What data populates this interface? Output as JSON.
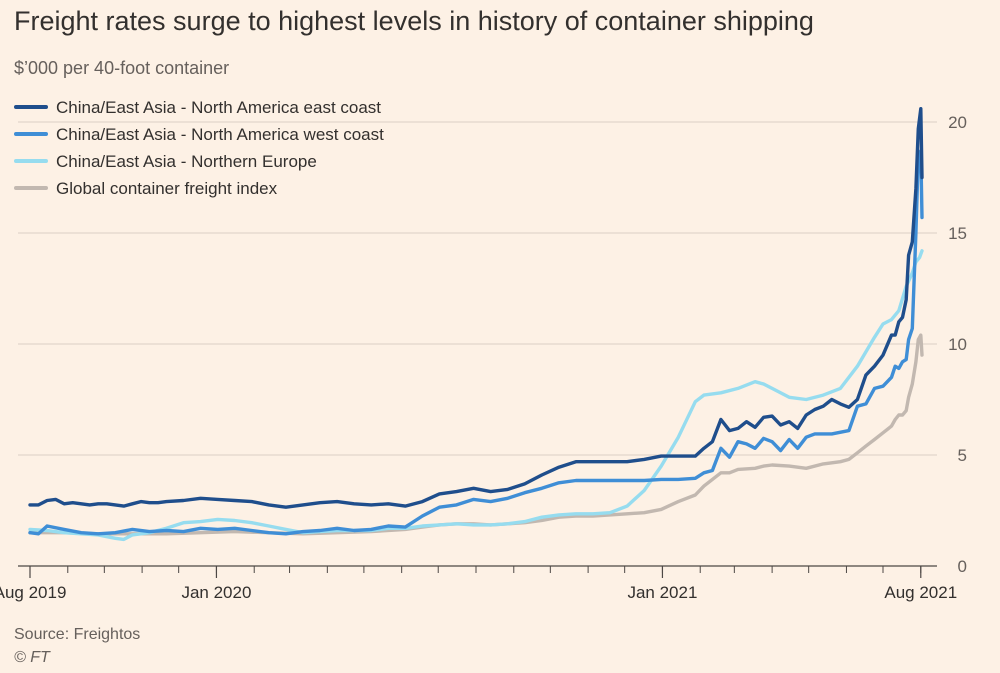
{
  "header": {
    "title": "Freight rates surge to highest levels in history of container shipping",
    "subtitle": "$’000 per 40-foot container"
  },
  "footer": {
    "source": "Source: Freightos",
    "credit": "© FT"
  },
  "colors": {
    "background": "#fdf1e5",
    "grid": "#e2d7cc",
    "axis": "#4d4845",
    "text": "#33302e",
    "muted": "#66605c"
  },
  "chart_data": {
    "type": "line",
    "title": "Freight rates surge to highest levels in history of container shipping",
    "ylabel": "$’000 per 40-foot container",
    "xlabel": "",
    "ylim": [
      0,
      21
    ],
    "yticks": [
      0,
      5,
      10,
      15,
      20
    ],
    "x_tick_labels": [
      "Aug 2019",
      "Jan 2020",
      "Jan 2021",
      "Aug 2021"
    ],
    "x_tick_dates": [
      "2019-08-01",
      "2020-01-01",
      "2021-01-01",
      "2021-08-01"
    ],
    "x_range": [
      "2019-08-01",
      "2021-08-02"
    ],
    "grid": true,
    "legend_position": "top-left",
    "series": [
      {
        "name": "China/East Asia - North America east coast",
        "color": "#1f4e8c",
        "points": [
          [
            "2019-08-01",
            2.75
          ],
          [
            "2019-08-08",
            2.75
          ],
          [
            "2019-08-15",
            2.95
          ],
          [
            "2019-08-22",
            3.0
          ],
          [
            "2019-08-29",
            2.8
          ],
          [
            "2019-09-05",
            2.85
          ],
          [
            "2019-09-12",
            2.8
          ],
          [
            "2019-09-19",
            2.75
          ],
          [
            "2019-09-26",
            2.8
          ],
          [
            "2019-10-03",
            2.8
          ],
          [
            "2019-10-10",
            2.75
          ],
          [
            "2019-10-17",
            2.7
          ],
          [
            "2019-10-24",
            2.8
          ],
          [
            "2019-10-31",
            2.9
          ],
          [
            "2019-11-07",
            2.85
          ],
          [
            "2019-11-14",
            2.85
          ],
          [
            "2019-11-21",
            2.9
          ],
          [
            "2019-12-05",
            2.95
          ],
          [
            "2019-12-19",
            3.05
          ],
          [
            "2020-01-02",
            3.0
          ],
          [
            "2020-01-16",
            2.95
          ],
          [
            "2020-01-30",
            2.9
          ],
          [
            "2020-02-13",
            2.75
          ],
          [
            "2020-02-27",
            2.65
          ],
          [
            "2020-03-12",
            2.75
          ],
          [
            "2020-03-26",
            2.85
          ],
          [
            "2020-04-09",
            2.9
          ],
          [
            "2020-04-23",
            2.8
          ],
          [
            "2020-05-07",
            2.75
          ],
          [
            "2020-05-21",
            2.8
          ],
          [
            "2020-06-04",
            2.7
          ],
          [
            "2020-06-18",
            2.9
          ],
          [
            "2020-07-02",
            3.25
          ],
          [
            "2020-07-16",
            3.35
          ],
          [
            "2020-07-30",
            3.5
          ],
          [
            "2020-08-13",
            3.35
          ],
          [
            "2020-08-27",
            3.45
          ],
          [
            "2020-09-10",
            3.7
          ],
          [
            "2020-09-24",
            4.1
          ],
          [
            "2020-10-08",
            4.45
          ],
          [
            "2020-10-22",
            4.7
          ],
          [
            "2020-11-05",
            4.7
          ],
          [
            "2020-11-19",
            4.7
          ],
          [
            "2020-12-03",
            4.7
          ],
          [
            "2020-12-17",
            4.8
          ],
          [
            "2020-12-31",
            4.95
          ],
          [
            "2021-01-14",
            4.95
          ],
          [
            "2021-01-28",
            4.95
          ],
          [
            "2021-02-04",
            5.3
          ],
          [
            "2021-02-11",
            5.6
          ],
          [
            "2021-02-18",
            6.6
          ],
          [
            "2021-02-25",
            6.1
          ],
          [
            "2021-03-04",
            6.2
          ],
          [
            "2021-03-11",
            6.5
          ],
          [
            "2021-03-18",
            6.25
          ],
          [
            "2021-03-25",
            6.7
          ],
          [
            "2021-04-01",
            6.75
          ],
          [
            "2021-04-08",
            6.35
          ],
          [
            "2021-04-15",
            6.5
          ],
          [
            "2021-04-22",
            6.2
          ],
          [
            "2021-04-29",
            6.8
          ],
          [
            "2021-05-06",
            7.05
          ],
          [
            "2021-05-13",
            7.2
          ],
          [
            "2021-05-20",
            7.5
          ],
          [
            "2021-05-27",
            7.3
          ],
          [
            "2021-06-03",
            7.15
          ],
          [
            "2021-06-10",
            7.5
          ],
          [
            "2021-06-17",
            8.6
          ],
          [
            "2021-06-24",
            9.0
          ],
          [
            "2021-07-01",
            9.5
          ],
          [
            "2021-07-08",
            10.4
          ],
          [
            "2021-07-11",
            10.4
          ],
          [
            "2021-07-14",
            11.0
          ],
          [
            "2021-07-17",
            11.2
          ],
          [
            "2021-07-20",
            12.0
          ],
          [
            "2021-07-22",
            14.0
          ],
          [
            "2021-07-25",
            14.6
          ],
          [
            "2021-07-28",
            17.0
          ],
          [
            "2021-07-30",
            19.7
          ],
          [
            "2021-08-01",
            20.6
          ],
          [
            "2021-08-02",
            17.5
          ]
        ]
      },
      {
        "name": "China/East Asia - North America west coast",
        "color": "#3f8ed6",
        "points": [
          [
            "2019-08-01",
            1.5
          ],
          [
            "2019-08-08",
            1.45
          ],
          [
            "2019-08-15",
            1.8
          ],
          [
            "2019-08-29",
            1.65
          ],
          [
            "2019-09-12",
            1.5
          ],
          [
            "2019-09-26",
            1.45
          ],
          [
            "2019-10-10",
            1.5
          ],
          [
            "2019-10-24",
            1.65
          ],
          [
            "2019-11-07",
            1.55
          ],
          [
            "2019-11-21",
            1.6
          ],
          [
            "2019-12-05",
            1.55
          ],
          [
            "2019-12-19",
            1.7
          ],
          [
            "2020-01-02",
            1.65
          ],
          [
            "2020-01-16",
            1.7
          ],
          [
            "2020-01-30",
            1.6
          ],
          [
            "2020-02-13",
            1.5
          ],
          [
            "2020-02-27",
            1.45
          ],
          [
            "2020-03-12",
            1.55
          ],
          [
            "2020-03-26",
            1.6
          ],
          [
            "2020-04-09",
            1.7
          ],
          [
            "2020-04-23",
            1.6
          ],
          [
            "2020-05-07",
            1.65
          ],
          [
            "2020-05-21",
            1.8
          ],
          [
            "2020-06-04",
            1.75
          ],
          [
            "2020-06-18",
            2.25
          ],
          [
            "2020-07-02",
            2.65
          ],
          [
            "2020-07-16",
            2.75
          ],
          [
            "2020-07-30",
            3.0
          ],
          [
            "2020-08-13",
            2.9
          ],
          [
            "2020-08-27",
            3.05
          ],
          [
            "2020-09-10",
            3.3
          ],
          [
            "2020-09-24",
            3.5
          ],
          [
            "2020-10-08",
            3.75
          ],
          [
            "2020-10-22",
            3.85
          ],
          [
            "2020-11-05",
            3.85
          ],
          [
            "2020-11-19",
            3.85
          ],
          [
            "2020-12-03",
            3.85
          ],
          [
            "2020-12-17",
            3.85
          ],
          [
            "2020-12-31",
            3.9
          ],
          [
            "2021-01-14",
            3.9
          ],
          [
            "2021-01-28",
            3.95
          ],
          [
            "2021-02-04",
            4.2
          ],
          [
            "2021-02-11",
            4.3
          ],
          [
            "2021-02-18",
            5.3
          ],
          [
            "2021-02-25",
            4.9
          ],
          [
            "2021-03-04",
            5.6
          ],
          [
            "2021-03-11",
            5.5
          ],
          [
            "2021-03-18",
            5.3
          ],
          [
            "2021-03-25",
            5.75
          ],
          [
            "2021-04-01",
            5.6
          ],
          [
            "2021-04-08",
            5.2
          ],
          [
            "2021-04-15",
            5.7
          ],
          [
            "2021-04-22",
            5.3
          ],
          [
            "2021-04-29",
            5.8
          ],
          [
            "2021-05-06",
            5.95
          ],
          [
            "2021-05-20",
            5.95
          ],
          [
            "2021-06-03",
            6.1
          ],
          [
            "2021-06-10",
            7.2
          ],
          [
            "2021-06-17",
            7.3
          ],
          [
            "2021-06-24",
            8.0
          ],
          [
            "2021-07-01",
            8.1
          ],
          [
            "2021-07-08",
            8.5
          ],
          [
            "2021-07-11",
            9.0
          ],
          [
            "2021-07-14",
            8.9
          ],
          [
            "2021-07-17",
            9.2
          ],
          [
            "2021-07-20",
            9.3
          ],
          [
            "2021-07-22",
            10.2
          ],
          [
            "2021-07-25",
            10.7
          ],
          [
            "2021-07-28",
            15.0
          ],
          [
            "2021-07-30",
            18.5
          ],
          [
            "2021-08-01",
            18.7
          ],
          [
            "2021-08-02",
            15.7
          ]
        ]
      },
      {
        "name": "China/East Asia - Northern Europe",
        "color": "#96dcef",
        "points": [
          [
            "2019-08-01",
            1.65
          ],
          [
            "2019-08-15",
            1.6
          ],
          [
            "2019-08-29",
            1.5
          ],
          [
            "2019-09-12",
            1.45
          ],
          [
            "2019-09-26",
            1.4
          ],
          [
            "2019-10-10",
            1.25
          ],
          [
            "2019-10-17",
            1.2
          ],
          [
            "2019-10-24",
            1.4
          ],
          [
            "2019-11-07",
            1.5
          ],
          [
            "2019-11-21",
            1.7
          ],
          [
            "2019-12-05",
            1.95
          ],
          [
            "2019-12-19",
            2.0
          ],
          [
            "2020-01-02",
            2.1
          ],
          [
            "2020-01-16",
            2.05
          ],
          [
            "2020-01-30",
            1.95
          ],
          [
            "2020-02-13",
            1.8
          ],
          [
            "2020-02-27",
            1.65
          ],
          [
            "2020-03-12",
            1.5
          ],
          [
            "2020-03-26",
            1.55
          ],
          [
            "2020-04-09",
            1.6
          ],
          [
            "2020-04-23",
            1.6
          ],
          [
            "2020-05-07",
            1.6
          ],
          [
            "2020-05-21",
            1.7
          ],
          [
            "2020-06-04",
            1.7
          ],
          [
            "2020-06-18",
            1.8
          ],
          [
            "2020-07-02",
            1.85
          ],
          [
            "2020-07-16",
            1.9
          ],
          [
            "2020-07-30",
            1.85
          ],
          [
            "2020-08-13",
            1.85
          ],
          [
            "2020-08-27",
            1.9
          ],
          [
            "2020-09-10",
            2.0
          ],
          [
            "2020-09-24",
            2.2
          ],
          [
            "2020-10-08",
            2.3
          ],
          [
            "2020-10-22",
            2.35
          ],
          [
            "2020-11-05",
            2.35
          ],
          [
            "2020-11-19",
            2.4
          ],
          [
            "2020-12-03",
            2.7
          ],
          [
            "2020-12-17",
            3.4
          ],
          [
            "2020-12-31",
            4.5
          ],
          [
            "2021-01-14",
            5.8
          ],
          [
            "2021-01-28",
            7.4
          ],
          [
            "2021-02-04",
            7.7
          ],
          [
            "2021-02-18",
            7.8
          ],
          [
            "2021-03-04",
            8.0
          ],
          [
            "2021-03-18",
            8.3
          ],
          [
            "2021-03-25",
            8.2
          ],
          [
            "2021-04-01",
            8.0
          ],
          [
            "2021-04-15",
            7.6
          ],
          [
            "2021-04-29",
            7.5
          ],
          [
            "2021-05-13",
            7.7
          ],
          [
            "2021-05-27",
            8.0
          ],
          [
            "2021-06-10",
            9.0
          ],
          [
            "2021-06-24",
            10.3
          ],
          [
            "2021-07-01",
            10.9
          ],
          [
            "2021-07-08",
            11.1
          ],
          [
            "2021-07-14",
            11.5
          ],
          [
            "2021-07-20",
            12.6
          ],
          [
            "2021-07-25",
            13.2
          ],
          [
            "2021-07-28",
            13.7
          ],
          [
            "2021-07-31",
            13.9
          ],
          [
            "2021-08-02",
            14.2
          ]
        ]
      },
      {
        "name": "Global container freight index",
        "color": "#c2b8b0",
        "points": [
          [
            "2019-08-01",
            1.5
          ],
          [
            "2019-08-29",
            1.5
          ],
          [
            "2019-09-26",
            1.45
          ],
          [
            "2019-10-24",
            1.45
          ],
          [
            "2019-11-21",
            1.45
          ],
          [
            "2019-12-19",
            1.5
          ],
          [
            "2020-01-16",
            1.55
          ],
          [
            "2020-02-13",
            1.5
          ],
          [
            "2020-03-12",
            1.45
          ],
          [
            "2020-04-09",
            1.5
          ],
          [
            "2020-05-07",
            1.55
          ],
          [
            "2020-06-04",
            1.65
          ],
          [
            "2020-06-18",
            1.75
          ],
          [
            "2020-07-02",
            1.85
          ],
          [
            "2020-07-16",
            1.9
          ],
          [
            "2020-07-30",
            1.9
          ],
          [
            "2020-08-13",
            1.85
          ],
          [
            "2020-08-27",
            1.9
          ],
          [
            "2020-09-10",
            1.95
          ],
          [
            "2020-09-24",
            2.05
          ],
          [
            "2020-10-08",
            2.2
          ],
          [
            "2020-10-22",
            2.25
          ],
          [
            "2020-11-05",
            2.25
          ],
          [
            "2020-11-19",
            2.3
          ],
          [
            "2020-12-03",
            2.35
          ],
          [
            "2020-12-17",
            2.4
          ],
          [
            "2020-12-31",
            2.55
          ],
          [
            "2021-01-14",
            2.9
          ],
          [
            "2021-01-28",
            3.2
          ],
          [
            "2021-02-04",
            3.6
          ],
          [
            "2021-02-11",
            3.9
          ],
          [
            "2021-02-18",
            4.2
          ],
          [
            "2021-02-25",
            4.2
          ],
          [
            "2021-03-04",
            4.35
          ],
          [
            "2021-03-18",
            4.4
          ],
          [
            "2021-03-25",
            4.5
          ],
          [
            "2021-04-01",
            4.55
          ],
          [
            "2021-04-15",
            4.5
          ],
          [
            "2021-04-29",
            4.4
          ],
          [
            "2021-05-13",
            4.6
          ],
          [
            "2021-05-27",
            4.7
          ],
          [
            "2021-06-03",
            4.8
          ],
          [
            "2021-06-10",
            5.1
          ],
          [
            "2021-06-17",
            5.4
          ],
          [
            "2021-06-24",
            5.7
          ],
          [
            "2021-07-01",
            6.0
          ],
          [
            "2021-07-08",
            6.3
          ],
          [
            "2021-07-11",
            6.6
          ],
          [
            "2021-07-14",
            6.8
          ],
          [
            "2021-07-17",
            6.8
          ],
          [
            "2021-07-20",
            7.0
          ],
          [
            "2021-07-22",
            7.6
          ],
          [
            "2021-07-25",
            8.2
          ],
          [
            "2021-07-28",
            9.2
          ],
          [
            "2021-07-30",
            10.2
          ],
          [
            "2021-08-01",
            10.4
          ],
          [
            "2021-08-02",
            9.5
          ]
        ]
      }
    ]
  }
}
